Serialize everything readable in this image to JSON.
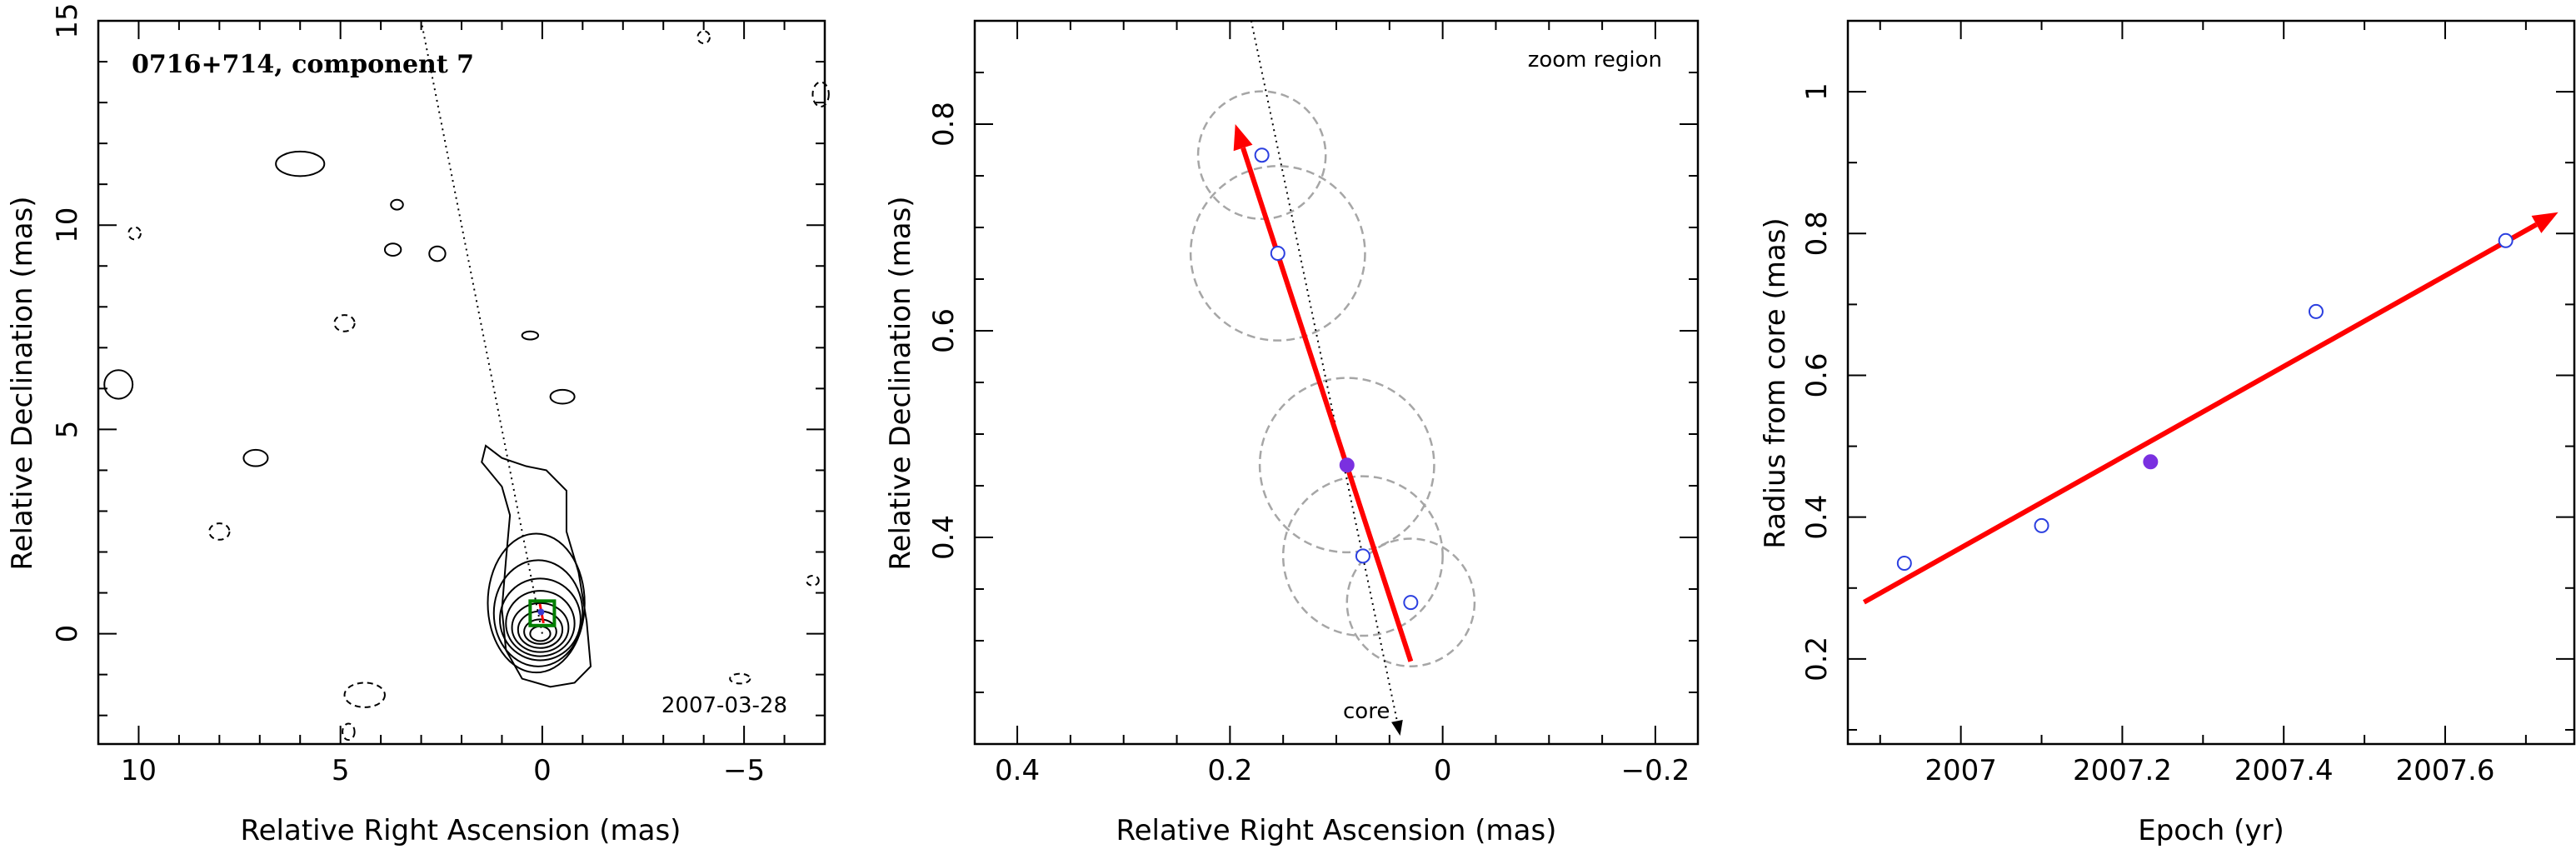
{
  "chart_data": [
    {
      "type": "contour",
      "panel": "left",
      "title": "0716+714, component 7",
      "date_label": "2007-03-28",
      "xlabel": "Relative Right Ascension (mas)",
      "ylabel": "Relative Declination (mas)",
      "xlim": [
        11,
        -7
      ],
      "ylim": [
        -2.7,
        15
      ],
      "xticks": [
        10,
        5,
        0,
        -5
      ],
      "yticks": [
        0,
        5,
        10,
        15
      ],
      "core": {
        "x": 0,
        "y": 0
      },
      "jet_axis": {
        "from": [
          0,
          0
        ],
        "to": [
          3,
          15
        ],
        "style": "dotted"
      },
      "zoom_box": {
        "x": [
          0.3,
          -0.3
        ],
        "y": [
          0.2,
          0.8
        ],
        "color": "#008000"
      },
      "nested_contours": [
        {
          "x": 0.05,
          "y": 0.0,
          "rx": 0.25,
          "ry": 0.18
        },
        {
          "x": 0.05,
          "y": 0.05,
          "rx": 0.4,
          "ry": 0.3
        },
        {
          "x": 0.05,
          "y": 0.1,
          "rx": 0.55,
          "ry": 0.45
        },
        {
          "x": 0.05,
          "y": 0.15,
          "rx": 0.7,
          "ry": 0.6
        },
        {
          "x": 0.05,
          "y": 0.25,
          "rx": 0.85,
          "ry": 0.8
        },
        {
          "x": 0.05,
          "y": 0.35,
          "rx": 1.0,
          "ry": 1.0
        },
        {
          "x": 0.1,
          "y": 0.5,
          "rx": 1.1,
          "ry": 1.3
        },
        {
          "x": 0.15,
          "y": 0.75,
          "rx": 1.2,
          "ry": 1.7
        }
      ],
      "outer_contour": [
        [
          -1.2,
          -0.8
        ],
        [
          -1.1,
          0.3
        ],
        [
          -0.9,
          1.5
        ],
        [
          -0.6,
          2.5
        ],
        [
          -0.6,
          3.5
        ],
        [
          -0.1,
          4.0
        ],
        [
          0.4,
          4.1
        ],
        [
          1.0,
          4.3
        ],
        [
          1.4,
          4.6
        ],
        [
          1.5,
          4.2
        ],
        [
          1.0,
          3.6
        ],
        [
          0.8,
          2.9
        ],
        [
          0.9,
          1.8
        ],
        [
          1.0,
          0.6
        ],
        [
          0.9,
          -0.4
        ],
        [
          0.5,
          -1.1
        ],
        [
          -0.2,
          -1.3
        ],
        [
          -0.8,
          -1.2
        ]
      ],
      "islands": [
        {
          "x": 10.5,
          "y": 6.1,
          "rx": 0.35,
          "ry": 0.35,
          "dashed": false
        },
        {
          "x": 10.1,
          "y": 9.8,
          "rx": 0.15,
          "ry": 0.15,
          "dashed": true
        },
        {
          "x": 6.0,
          "y": 11.5,
          "rx": 0.6,
          "ry": 0.3,
          "dashed": false
        },
        {
          "x": 3.6,
          "y": 10.5,
          "rx": 0.15,
          "ry": 0.12,
          "dashed": false
        },
        {
          "x": 3.7,
          "y": 9.4,
          "rx": 0.2,
          "ry": 0.15,
          "dashed": false
        },
        {
          "x": 2.6,
          "y": 9.3,
          "rx": 0.2,
          "ry": 0.18,
          "dashed": false
        },
        {
          "x": 4.9,
          "y": 7.6,
          "rx": 0.25,
          "ry": 0.2,
          "dashed": true
        },
        {
          "x": 7.1,
          "y": 4.3,
          "rx": 0.3,
          "ry": 0.2,
          "dashed": false
        },
        {
          "x": 8.0,
          "y": 2.5,
          "rx": 0.25,
          "ry": 0.2,
          "dashed": true
        },
        {
          "x": 0.3,
          "y": 7.3,
          "rx": 0.2,
          "ry": 0.1,
          "dashed": false
        },
        {
          "x": -0.5,
          "y": 5.8,
          "rx": 0.3,
          "ry": 0.17,
          "dashed": false
        },
        {
          "x": 4.4,
          "y": -1.5,
          "rx": 0.5,
          "ry": 0.3,
          "dashed": true
        },
        {
          "x": 4.8,
          "y": -2.4,
          "rx": 0.15,
          "ry": 0.2,
          "dashed": true
        },
        {
          "x": -4.9,
          "y": -1.1,
          "rx": 0.25,
          "ry": 0.12,
          "dashed": true
        },
        {
          "x": -4.0,
          "y": 14.6,
          "rx": 0.15,
          "ry": 0.15,
          "dashed": true
        },
        {
          "x": -6.9,
          "y": 13.2,
          "rx": 0.2,
          "ry": 0.3,
          "dashed": true
        },
        {
          "x": -6.7,
          "y": 1.3,
          "rx": 0.15,
          "ry": 0.12,
          "dashed": true
        }
      ]
    },
    {
      "type": "scatter",
      "panel": "middle",
      "annotation": "zoom region",
      "core_label": "core",
      "xlabel": "Relative Right Ascension (mas)",
      "ylabel": "Relative Declination (mas)",
      "xlim": [
        0.44,
        -0.24
      ],
      "ylim": [
        0.2,
        0.9
      ],
      "xticks": [
        0.4,
        0.2,
        0,
        -0.2
      ],
      "yticks": [
        0.4,
        0.6,
        0.8
      ],
      "points": [
        {
          "x": 0.17,
          "y": 0.77,
          "size": 0.06,
          "filled": false
        },
        {
          "x": 0.155,
          "y": 0.675,
          "size": 0.082,
          "filled": false
        },
        {
          "x": 0.09,
          "y": 0.47,
          "size": 0.082,
          "filled": true
        },
        {
          "x": 0.075,
          "y": 0.382,
          "size": 0.075,
          "filled": false
        },
        {
          "x": 0.03,
          "y": 0.337,
          "size": 0.06,
          "filled": false
        }
      ],
      "fit_arrow": {
        "from": [
          0.03,
          0.28
        ],
        "to": [
          0.195,
          0.8
        ],
        "color": "#ff0000"
      },
      "jet_axis": {
        "from": [
          0.04,
          0.2
        ],
        "to": [
          0.18,
          0.9
        ],
        "style": "dotted"
      }
    },
    {
      "type": "scatter",
      "panel": "right",
      "xlabel": "Epoch (yr)",
      "ylabel": "Radius from core (mas)",
      "xlim": [
        2006.86,
        2007.76
      ],
      "ylim": [
        0.08,
        1.1
      ],
      "xticks": [
        2007,
        2007.2,
        2007.4,
        2007.6
      ],
      "yticks": [
        0.2,
        0.4,
        0.6,
        0.8,
        1
      ],
      "points": [
        {
          "x": 2006.93,
          "y": 0.335,
          "filled": false
        },
        {
          "x": 2007.1,
          "y": 0.388,
          "filled": false
        },
        {
          "x": 2007.235,
          "y": 0.478,
          "filled": true
        },
        {
          "x": 2007.44,
          "y": 0.69,
          "filled": false
        },
        {
          "x": 2007.675,
          "y": 0.79,
          "filled": false
        }
      ],
      "fit_arrow": {
        "from": [
          2006.88,
          0.28
        ],
        "to": [
          2007.74,
          0.83
        ],
        "color": "#ff0000"
      }
    }
  ]
}
